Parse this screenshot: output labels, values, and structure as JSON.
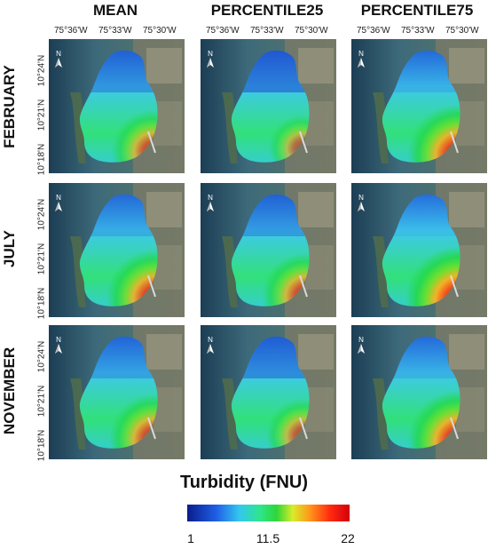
{
  "columns": [
    "MEAN",
    "PERCENTILE25",
    "PERCENTILE75"
  ],
  "rows": [
    "FEBRUARY",
    "JULY",
    "NOVEMBER"
  ],
  "longitude_labels": [
    "75°36'W",
    "75°33'W",
    "75°30'W"
  ],
  "latitude_labels": [
    "10°24'N",
    "10°21'N",
    "10°18'N"
  ],
  "north_arrow": {
    "letter": "N",
    "icon": "north-arrow-icon"
  },
  "legend": {
    "title": "Turbidity (FNU)",
    "min": "1",
    "mid": "11.5",
    "max": "22",
    "colors": [
      "#0a1d8c",
      "#1f5fe6",
      "#33c7f0",
      "#2ee68a",
      "#2fd63a",
      "#d8ec2a",
      "#ff9a1a",
      "#ff2a10",
      "#d4000a"
    ]
  },
  "panels": [
    {
      "row": "FEBRUARY",
      "column": "MEAN",
      "relative_level": 0.55
    },
    {
      "row": "FEBRUARY",
      "column": "PERCENTILE25",
      "relative_level": 0.35
    },
    {
      "row": "FEBRUARY",
      "column": "PERCENTILE75",
      "relative_level": 0.8
    },
    {
      "row": "JULY",
      "column": "MEAN",
      "relative_level": 0.75
    },
    {
      "row": "JULY",
      "column": "PERCENTILE25",
      "relative_level": 0.6
    },
    {
      "row": "JULY",
      "column": "PERCENTILE75",
      "relative_level": 0.9
    },
    {
      "row": "NOVEMBER",
      "column": "MEAN",
      "relative_level": 0.65
    },
    {
      "row": "NOVEMBER",
      "column": "PERCENTILE25",
      "relative_level": 0.45
    },
    {
      "row": "NOVEMBER",
      "column": "PERCENTILE75",
      "relative_level": 0.8
    }
  ]
}
